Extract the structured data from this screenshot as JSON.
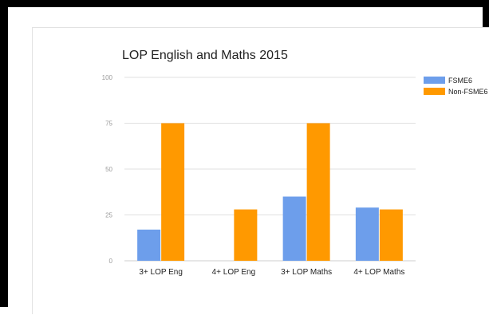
{
  "chart_data": {
    "type": "bar",
    "title": "LOP English and Maths 2015",
    "categories": [
      "3+ LOP Eng",
      "4+ LOP Eng",
      "3+ LOP Maths",
      "4+ LOP Maths"
    ],
    "series": [
      {
        "name": "FSME6",
        "values": [
          17,
          0,
          35,
          29
        ],
        "color": "#6d9eeb"
      },
      {
        "name": "Non-FSME6",
        "values": [
          75,
          28,
          75,
          28
        ],
        "color": "#ff9900"
      }
    ],
    "ylim": [
      0,
      100
    ],
    "yticks": [
      0,
      25,
      50,
      75,
      100
    ],
    "grid": true,
    "legend_position": "top-right"
  }
}
